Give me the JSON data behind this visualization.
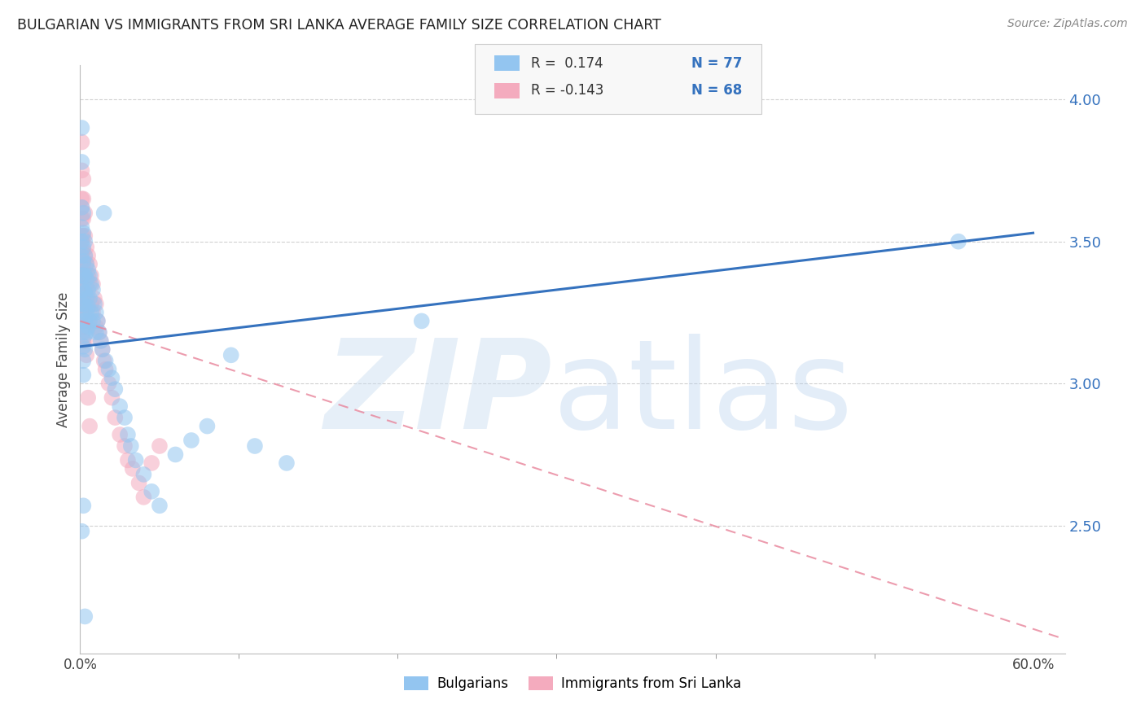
{
  "title": "BULGARIAN VS IMMIGRANTS FROM SRI LANKA AVERAGE FAMILY SIZE CORRELATION CHART",
  "source": "Source: ZipAtlas.com",
  "ylabel": "Average Family Size",
  "xlim": [
    0.0,
    0.62
  ],
  "ylim": [
    2.05,
    4.12
  ],
  "yticks": [
    2.5,
    3.0,
    3.5,
    4.0
  ],
  "xtick_positions": [
    0.0,
    0.6
  ],
  "xtick_labels": [
    "0.0%",
    "60.0%"
  ],
  "blue_color": "#93C5F0",
  "pink_color": "#F4ABBE",
  "blue_line_color": "#3572BE",
  "pink_line_color": "#E8849A",
  "watermark_zip": "ZIP",
  "watermark_atlas": "atlas",
  "blue_R": 0.174,
  "blue_N": 77,
  "pink_R": -0.143,
  "pink_N": 68,
  "blue_trend_x": [
    0.0,
    0.6
  ],
  "blue_trend_y": [
    3.13,
    3.53
  ],
  "pink_trend_x": [
    0.0,
    0.62
  ],
  "pink_trend_y": [
    3.22,
    2.1
  ],
  "grid_color": "#CCCCCC",
  "background_color": "#FFFFFF",
  "legend_label1": "Bulgarians",
  "legend_label2": "Immigrants from Sri Lanka",
  "blue_scatter_x": [
    0.001,
    0.001,
    0.001,
    0.001,
    0.001,
    0.001,
    0.001,
    0.001,
    0.001,
    0.001,
    0.002,
    0.002,
    0.002,
    0.002,
    0.002,
    0.002,
    0.002,
    0.002,
    0.002,
    0.002,
    0.002,
    0.002,
    0.003,
    0.003,
    0.003,
    0.003,
    0.003,
    0.003,
    0.003,
    0.003,
    0.004,
    0.004,
    0.004,
    0.004,
    0.004,
    0.005,
    0.005,
    0.005,
    0.005,
    0.006,
    0.006,
    0.006,
    0.007,
    0.007,
    0.008,
    0.008,
    0.009,
    0.01,
    0.01,
    0.011,
    0.012,
    0.013,
    0.014,
    0.015,
    0.016,
    0.018,
    0.02,
    0.022,
    0.025,
    0.028,
    0.03,
    0.032,
    0.035,
    0.04,
    0.045,
    0.05,
    0.06,
    0.07,
    0.08,
    0.095,
    0.11,
    0.13,
    0.215,
    0.001,
    0.002,
    0.553,
    0.003
  ],
  "blue_scatter_y": [
    3.9,
    3.78,
    3.62,
    3.55,
    3.5,
    3.45,
    3.38,
    3.33,
    3.28,
    3.22,
    3.6,
    3.53,
    3.48,
    3.43,
    3.38,
    3.33,
    3.28,
    3.22,
    3.18,
    3.13,
    3.08,
    3.03,
    3.5,
    3.45,
    3.38,
    3.32,
    3.27,
    3.22,
    3.17,
    3.12,
    3.42,
    3.37,
    3.3,
    3.25,
    3.18,
    3.4,
    3.33,
    3.27,
    3.2,
    3.38,
    3.3,
    3.22,
    3.35,
    3.25,
    3.33,
    3.22,
    3.28,
    3.25,
    3.18,
    3.22,
    3.18,
    3.15,
    3.12,
    3.6,
    3.08,
    3.05,
    3.02,
    2.98,
    2.92,
    2.88,
    2.82,
    2.78,
    2.73,
    2.68,
    2.62,
    2.57,
    2.75,
    2.8,
    2.85,
    3.1,
    2.78,
    2.72,
    3.22,
    2.48,
    2.57,
    3.5,
    2.18
  ],
  "pink_scatter_x": [
    0.001,
    0.001,
    0.001,
    0.001,
    0.001,
    0.001,
    0.001,
    0.001,
    0.001,
    0.001,
    0.002,
    0.002,
    0.002,
    0.002,
    0.002,
    0.002,
    0.002,
    0.002,
    0.002,
    0.002,
    0.002,
    0.003,
    0.003,
    0.003,
    0.003,
    0.003,
    0.003,
    0.003,
    0.003,
    0.004,
    0.004,
    0.004,
    0.004,
    0.005,
    0.005,
    0.005,
    0.006,
    0.006,
    0.007,
    0.007,
    0.008,
    0.008,
    0.009,
    0.01,
    0.01,
    0.011,
    0.012,
    0.013,
    0.014,
    0.015,
    0.016,
    0.018,
    0.02,
    0.022,
    0.025,
    0.028,
    0.03,
    0.033,
    0.037,
    0.04,
    0.045,
    0.05,
    0.001,
    0.002,
    0.003,
    0.004,
    0.005,
    0.006
  ],
  "pink_scatter_y": [
    3.85,
    3.75,
    3.65,
    3.58,
    3.52,
    3.47,
    3.42,
    3.37,
    3.32,
    3.27,
    3.72,
    3.65,
    3.58,
    3.52,
    3.47,
    3.42,
    3.37,
    3.3,
    3.25,
    3.2,
    3.15,
    3.6,
    3.52,
    3.45,
    3.38,
    3.32,
    3.27,
    3.2,
    3.15,
    3.48,
    3.42,
    3.35,
    3.27,
    3.45,
    3.38,
    3.3,
    3.42,
    3.35,
    3.38,
    3.28,
    3.35,
    3.25,
    3.3,
    3.28,
    3.2,
    3.22,
    3.18,
    3.15,
    3.12,
    3.08,
    3.05,
    3.0,
    2.95,
    2.88,
    2.82,
    2.78,
    2.73,
    2.7,
    2.65,
    2.6,
    2.72,
    2.78,
    3.62,
    3.42,
    3.25,
    3.1,
    2.95,
    2.85
  ]
}
